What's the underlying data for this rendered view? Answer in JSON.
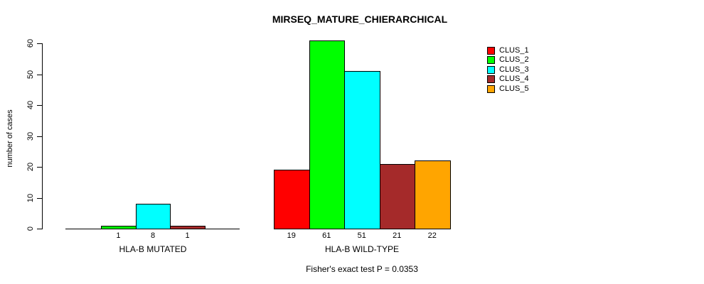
{
  "page": {
    "background": "#ffffff"
  },
  "chart_data": {
    "type": "bar",
    "title": "MIRSEQ_MATURE_CHIERARCHICAL",
    "xlabel": "",
    "ylabel": "number of cases",
    "ylim": [
      0,
      60
    ],
    "yticks": [
      0,
      10,
      20,
      30,
      40,
      50,
      60
    ],
    "grid": false,
    "legend_position": "top-right",
    "categories": [
      "HLA-B MUTATED",
      "HLA-B WILD-TYPE"
    ],
    "series": [
      {
        "name": "CLUS_1",
        "color": "#FF0000",
        "values": [
          0,
          19
        ]
      },
      {
        "name": "CLUS_2",
        "color": "#00FF00",
        "values": [
          1,
          61
        ]
      },
      {
        "name": "CLUS_3",
        "color": "#00FFFF",
        "values": [
          8,
          51
        ]
      },
      {
        "name": "CLUS_4",
        "color": "#A52A2A",
        "values": [
          1,
          21
        ]
      },
      {
        "name": "CLUS_5",
        "color": "#FFA500",
        "values": [
          0,
          22
        ]
      }
    ],
    "bar_value_labels_shown_for_nonzero_only": true,
    "annotation": "Fisher's exact test P = 0.0353"
  }
}
